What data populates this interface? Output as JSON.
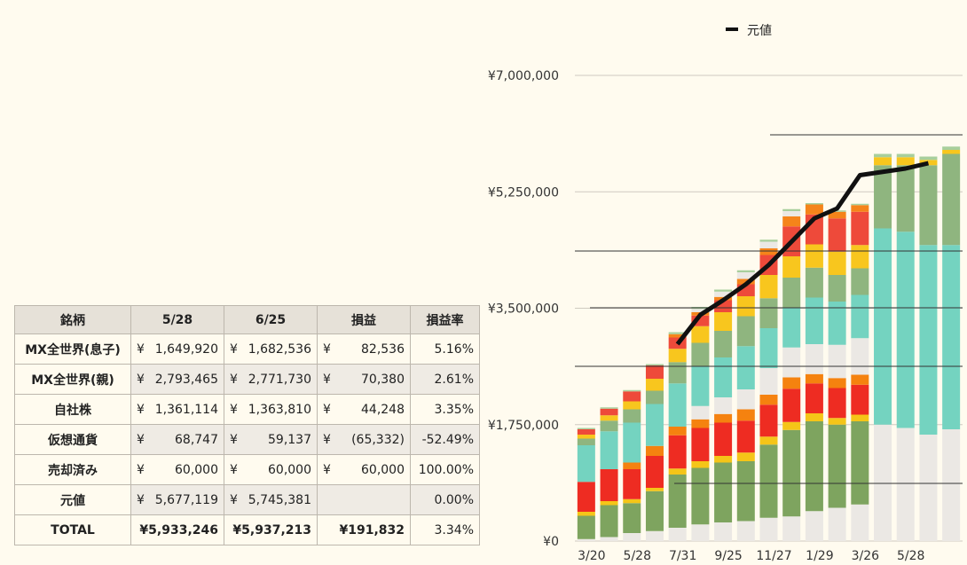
{
  "table": {
    "headers": [
      "銘柄",
      "5/28",
      "6/25",
      "損益",
      "損益率"
    ],
    "currency_symbol": "¥",
    "rows": [
      {
        "name": "MX全世界(息子)",
        "v528": "1,649,920",
        "v625": "1,682,536",
        "pl": "82,536",
        "rate": "5.16%"
      },
      {
        "name": "MX全世界(親)",
        "v528": "2,793,465",
        "v625": "2,771,730",
        "pl": "70,380",
        "rate": "2.61%"
      },
      {
        "name": "自社株",
        "v528": "1,361,114",
        "v625": "1,363,810",
        "pl": "44,248",
        "rate": "3.35%"
      },
      {
        "name": "仮想通貨",
        "v528": "68,747",
        "v625": "59,137",
        "pl": "(65,332)",
        "rate": "-52.49%"
      },
      {
        "name": "売却済み",
        "v528": "60,000",
        "v625": "60,000",
        "pl": "60,000",
        "rate": "100.00%"
      },
      {
        "name": "元値",
        "v528": "5,677,119",
        "v625": "5,745,381",
        "pl": "",
        "rate": "0.00%"
      }
    ],
    "total": {
      "name": "TOTAL",
      "v528": "¥5,933,246",
      "v625": "¥5,937,213",
      "pl": "¥191,832",
      "rate": "3.34%"
    }
  },
  "chart_data": {
    "type": "bar",
    "stacked": true,
    "legend": [
      {
        "name": "元値",
        "color": "#111111",
        "position": "top"
      }
    ],
    "y_tick_labels": [
      "¥0",
      "¥1,750,000",
      "¥3,500,000",
      "¥5,250,000",
      "¥7,000,000"
    ],
    "ylim": [
      0,
      7000000
    ],
    "x_tick_labels": [
      "3/20",
      "5/28",
      "7/31",
      "9/25",
      "11/27",
      "1/29",
      "3/26",
      "5/28"
    ],
    "x_tick_every": 2,
    "colors": [
      "#ebe8e4",
      "#7ea45f",
      "#f5c518",
      "#ee2c22",
      "#f5820f",
      "#ebe8e4",
      "#74d3c0",
      "#8fb57f",
      "#f8c61e",
      "#ee4a3a",
      "#f5841a",
      "#ebe8e4",
      "#a8cf9c"
    ],
    "bars": [
      [
        30000,
        350000,
        60000,
        450000,
        0,
        0,
        550000,
        100000,
        60000,
        80000,
        0,
        0,
        20000
      ],
      [
        60000,
        480000,
        60000,
        480000,
        0,
        0,
        570000,
        160000,
        80000,
        100000,
        0,
        0,
        20000
      ],
      [
        120000,
        450000,
        60000,
        450000,
        100000,
        0,
        600000,
        200000,
        120000,
        150000,
        0,
        0,
        20000
      ],
      [
        150000,
        600000,
        50000,
        480000,
        150000,
        0,
        630000,
        200000,
        180000,
        200000,
        0,
        0,
        20000
      ],
      [
        200000,
        800000,
        90000,
        500000,
        130000,
        0,
        650000,
        320000,
        200000,
        170000,
        50000,
        0,
        30000
      ],
      [
        250000,
        850000,
        100000,
        500000,
        130000,
        200000,
        600000,
        350000,
        250000,
        160000,
        50000,
        50000,
        30000
      ],
      [
        280000,
        900000,
        100000,
        500000,
        130000,
        250000,
        600000,
        400000,
        280000,
        180000,
        50000,
        80000,
        30000
      ],
      [
        300000,
        900000,
        130000,
        480000,
        170000,
        300000,
        650000,
        450000,
        300000,
        180000,
        80000,
        100000,
        30000
      ],
      [
        350000,
        1100000,
        120000,
        480000,
        150000,
        400000,
        600000,
        450000,
        350000,
        300000,
        100000,
        100000,
        30000
      ],
      [
        370000,
        1300000,
        120000,
        500000,
        170000,
        450000,
        600000,
        450000,
        320000,
        450000,
        150000,
        80000,
        30000
      ],
      [
        450000,
        1350000,
        120000,
        450000,
        140000,
        450000,
        700000,
        450000,
        350000,
        450000,
        150000,
        0,
        20000
      ],
      [
        500000,
        1250000,
        100000,
        450000,
        150000,
        500000,
        650000,
        400000,
        350000,
        500000,
        100000,
        0,
        20000
      ],
      [
        550000,
        1250000,
        100000,
        450000,
        150000,
        550000,
        650000,
        400000,
        350000,
        500000,
        100000,
        0,
        20000
      ],
      [
        1750000,
        0,
        0,
        0,
        0,
        0,
        2950000,
        950000,
        120000,
        0,
        0,
        0,
        50000
      ],
      [
        1700000,
        0,
        0,
        0,
        0,
        0,
        2950000,
        1000000,
        120000,
        0,
        0,
        0,
        50000
      ],
      [
        1600000,
        0,
        0,
        0,
        0,
        0,
        2850000,
        1200000,
        80000,
        0,
        0,
        0,
        50000
      ],
      [
        1680000,
        0,
        0,
        0,
        0,
        0,
        2770000,
        1370000,
        60000,
        0,
        0,
        0,
        50000
      ]
    ],
    "line": {
      "name": "元値",
      "start_index": 4,
      "values": [
        2960000,
        3400000,
        3620000,
        3860000,
        4150000,
        4500000,
        4850000,
        5000000,
        5500000,
        5550000,
        5600000,
        5680000
      ]
    }
  }
}
